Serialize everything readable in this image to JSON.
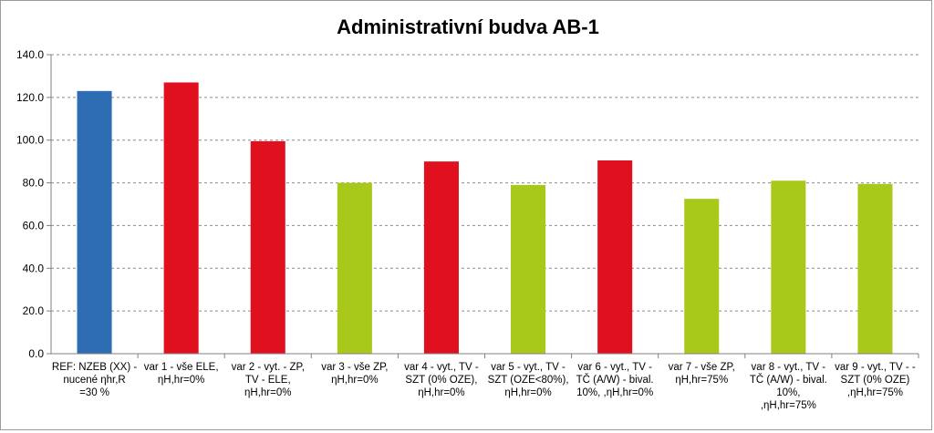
{
  "chart_data": {
    "type": "bar",
    "title": "Administrativní budva AB-1",
    "xlabel": "",
    "ylabel": "",
    "ylim": [
      0,
      140
    ],
    "yticks": [
      "0.0",
      "20.0",
      "40.0",
      "60.0",
      "80.0",
      "100.0",
      "120.0",
      "140.0"
    ],
    "grid": "horizontal-dashed",
    "legend": "none",
    "categories": [
      [
        "REF: NZEB (XX) -",
        "nucené ηhr,R",
        "=30 %"
      ],
      [
        "var 1 - vše ELE,",
        "ηH,hr=0%"
      ],
      [
        "var 2 - vyt. - ZP,",
        "TV - ELE,",
        "ηH,hr=0%"
      ],
      [
        "var 3 - vše ZP,",
        "ηH,hr=0%"
      ],
      [
        "var 4 - vyt., TV -",
        "SZT (0% OZE),",
        "ηH,hr=0%"
      ],
      [
        "var 5 - vyt., TV -",
        "SZT (OZE<80%),",
        "ηH,hr=0%"
      ],
      [
        "var 6 - vyt., TV -",
        "TČ (A/W) - bival.",
        "10%, ,ηH,hr=0%"
      ],
      [
        "var 7 - vše ZP,",
        "ηH,hr=75%"
      ],
      [
        "var 8 - vyt., TV -",
        "TČ (A/W) - bival.",
        "10%,",
        ",ηH,hr=75%"
      ],
      [
        "var 9 - vyt., TV - -",
        "SZT (0% OZE)",
        ",ηH,hr=75%"
      ]
    ],
    "values": [
      123,
      127,
      99.5,
      80,
      90,
      79,
      90.5,
      72.5,
      81,
      79.5
    ],
    "colors": [
      "#2e6db4",
      "#e0101e",
      "#e0101e",
      "#a8c81a",
      "#e0101e",
      "#a8c81a",
      "#e0101e",
      "#a8c81a",
      "#a8c81a",
      "#a8c81a"
    ]
  }
}
